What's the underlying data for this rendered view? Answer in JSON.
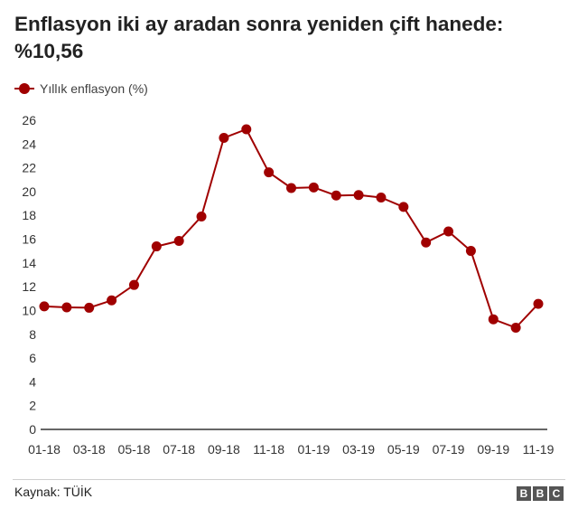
{
  "header": {
    "title": "Enflasyon iki ay aradan sonra yeniden çift hanede: %10,56"
  },
  "footer": {
    "source": "Kaynak: TÜİK",
    "logo_letters": [
      "B",
      "B",
      "C"
    ]
  },
  "colors": {
    "series": "#a00000",
    "axis": "#333333",
    "tick_text": "#333333"
  },
  "chart_data": {
    "type": "line",
    "title": "Enflasyon iki ay aradan sonra yeniden çift hanede: %10,56",
    "xlabel": "",
    "ylabel": "",
    "ylim": [
      0,
      26
    ],
    "yticks": [
      0,
      2,
      4,
      6,
      8,
      10,
      12,
      14,
      16,
      18,
      20,
      22,
      24,
      26
    ],
    "grid": false,
    "legend": "top-left",
    "x": [
      "01-18",
      "02-18",
      "03-18",
      "04-18",
      "05-18",
      "06-18",
      "07-18",
      "08-18",
      "09-18",
      "10-18",
      "11-18",
      "12-18",
      "01-19",
      "02-19",
      "03-19",
      "04-19",
      "05-19",
      "06-19",
      "07-19",
      "08-19",
      "09-19",
      "10-19",
      "11-19"
    ],
    "xtick_labels": [
      "01-18",
      "03-18",
      "05-18",
      "07-18",
      "09-18",
      "11-18",
      "01-19",
      "03-19",
      "05-19",
      "07-19",
      "09-19",
      "11-19"
    ],
    "series": [
      {
        "name": "Yıllık enflasyon (%)",
        "values": [
          10.35,
          10.26,
          10.23,
          10.85,
          12.15,
          15.39,
          15.85,
          17.9,
          24.52,
          25.24,
          21.62,
          20.3,
          20.35,
          19.67,
          19.71,
          19.5,
          18.71,
          15.72,
          16.65,
          15.01,
          9.26,
          8.55,
          10.56
        ]
      }
    ]
  }
}
